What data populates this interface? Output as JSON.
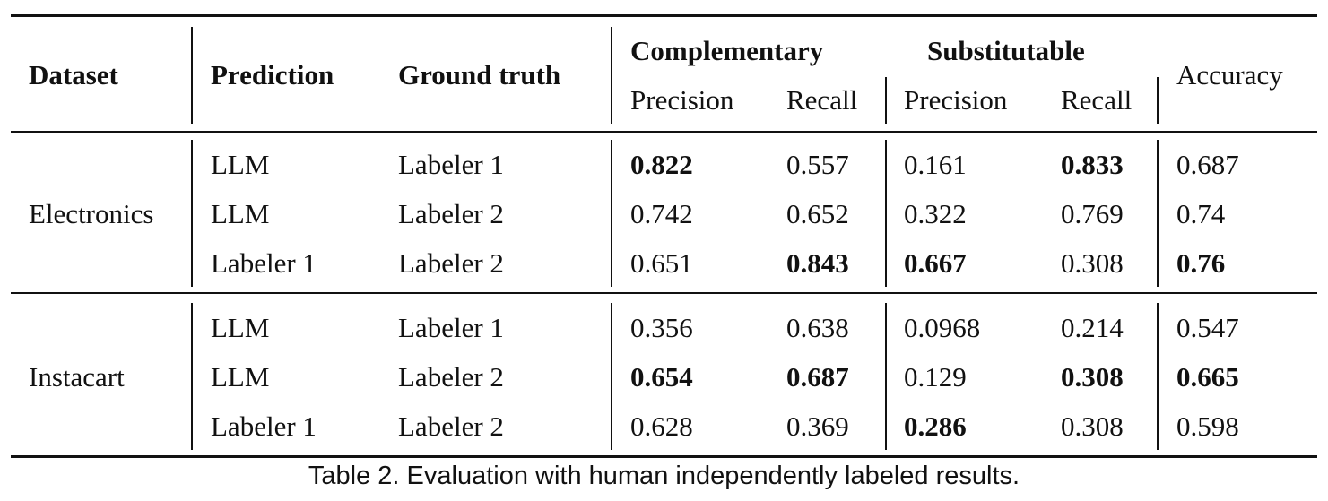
{
  "table": {
    "headers": {
      "dataset": "Dataset",
      "prediction": "Prediction",
      "ground_truth": "Ground truth",
      "complementary": "Complementary",
      "substitutable": "Substitutable",
      "precision": "Precision",
      "recall": "Recall",
      "accuracy": "Accuracy"
    },
    "groups": [
      {
        "dataset": "Electronics",
        "rows": [
          {
            "prediction": "LLM",
            "ground_truth": "Labeler 1",
            "comp_precision": "0.822",
            "comp_recall": "0.557",
            "sub_precision": "0.161",
            "sub_recall": "0.833",
            "accuracy": "0.687"
          },
          {
            "prediction": "LLM",
            "ground_truth": "Labeler 2",
            "comp_precision": "0.742",
            "comp_recall": "0.652",
            "sub_precision": "0.322",
            "sub_recall": "0.769",
            "accuracy": "0.74"
          },
          {
            "prediction": "Labeler 1",
            "ground_truth": "Labeler 2",
            "comp_precision": "0.651",
            "comp_recall": "0.843",
            "sub_precision": "0.667",
            "sub_recall": "0.308",
            "accuracy": "0.76"
          }
        ]
      },
      {
        "dataset": "Instacart",
        "rows": [
          {
            "prediction": "LLM",
            "ground_truth": "Labeler 1",
            "comp_precision": "0.356",
            "comp_recall": "0.638",
            "sub_precision": "0.0968",
            "sub_recall": "0.214",
            "accuracy": "0.547"
          },
          {
            "prediction": "LLM",
            "ground_truth": "Labeler 2",
            "comp_precision": "0.654",
            "comp_recall": "0.687",
            "sub_precision": "0.129",
            "sub_recall": "0.308",
            "accuracy": "0.665"
          },
          {
            "prediction": "Labeler 1",
            "ground_truth": "Labeler 2",
            "comp_precision": "0.628",
            "comp_recall": "0.369",
            "sub_precision": "0.286",
            "sub_recall": "0.308",
            "accuracy": "0.598"
          }
        ]
      }
    ]
  },
  "caption": "Table 2.  Evaluation with human independently labeled results."
}
